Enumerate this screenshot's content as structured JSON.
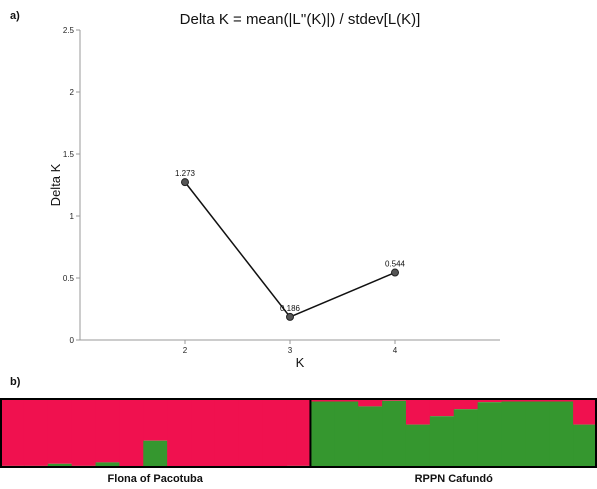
{
  "panel_a": "a)",
  "panel_b": "b)",
  "chart_data": [
    {
      "type": "line",
      "title": "Delta K = mean(|L''(K)|) / stdev[L(K)]",
      "xlabel": "K",
      "ylabel": "Delta K",
      "x": [
        2,
        3,
        4
      ],
      "y": [
        1.273,
        0.186,
        0.544
      ],
      "data_labels": [
        "1.273",
        "0.186",
        "0.544"
      ],
      "xlim": [
        1,
        5
      ],
      "ylim": [
        0,
        2.5
      ],
      "xticks": [
        "2",
        "3",
        "4"
      ],
      "yticks": [
        "0",
        "0.5",
        "1",
        "1.5",
        "2",
        "2.5"
      ],
      "grid": false,
      "line_color": "#111111",
      "marker_color": "#555555"
    },
    {
      "type": "bar",
      "subtype": "stacked-100",
      "series": [
        {
          "color": "#f0114f",
          "values": [
            0.97,
            0.97,
            0.94,
            0.97,
            0.92,
            1.0,
            0.61,
            0.98,
            0.98,
            0.98,
            0.98,
            0.98,
            0.97,
            0.05,
            0.05,
            0.12,
            0.04,
            0.38,
            0.26,
            0.16,
            0.06,
            0.05,
            0.05,
            0.05,
            0.38
          ]
        },
        {
          "color": "#35972f",
          "values": [
            0.03,
            0.03,
            0.06,
            0.03,
            0.08,
            0.0,
            0.39,
            0.02,
            0.02,
            0.02,
            0.02,
            0.02,
            0.03,
            0.95,
            0.95,
            0.88,
            0.96,
            0.62,
            0.74,
            0.84,
            0.94,
            0.95,
            0.95,
            0.95,
            0.62
          ]
        }
      ],
      "groups": [
        {
          "name": "Flona of Pacotuba",
          "count": 13
        },
        {
          "name": "RPPN Cafundó",
          "count": 12
        }
      ]
    }
  ]
}
